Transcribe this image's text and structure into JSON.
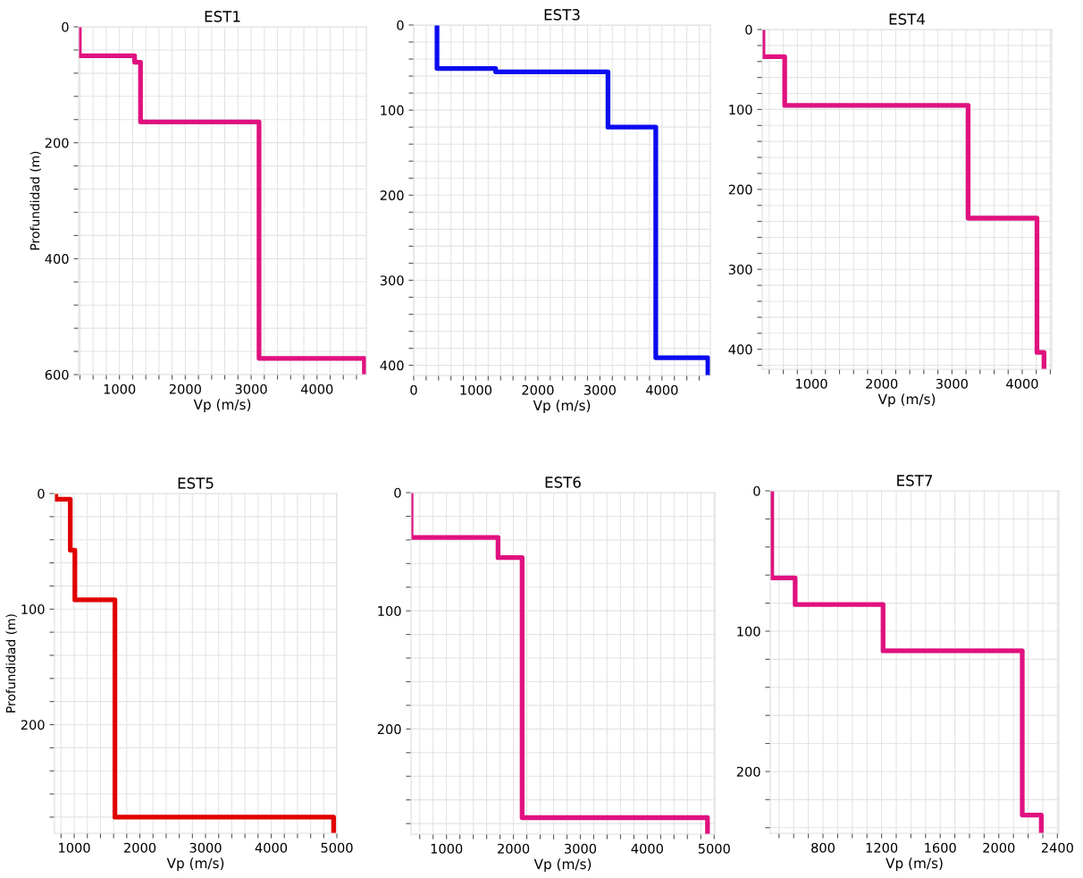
{
  "chart_data": [
    {
      "type": "line",
      "title": "EST1",
      "xlabel": "Vp (m/s)",
      "ylabel": "Profundidad (m)",
      "color": "#e0117f",
      "grid": true,
      "x": [
        390,
        390,
        1230,
        1230,
        1320,
        1320,
        3120,
        3120,
        4720,
        4720
      ],
      "values": [
        0,
        50,
        50,
        61,
        61,
        164,
        164,
        572,
        572,
        600
      ],
      "xlim": [
        380,
        4750
      ],
      "ylim": [
        600,
        0
      ],
      "xticks": [
        {
          "value": 400,
          "label": null
        },
        {
          "value": 600,
          "label": null
        },
        {
          "value": 800,
          "label": null
        },
        1000,
        {
          "value": 1200,
          "label": null
        },
        {
          "value": 1400,
          "label": null
        },
        {
          "value": 1600,
          "label": null
        },
        {
          "value": 1800,
          "label": null
        },
        2000,
        {
          "value": 2200,
          "label": null
        },
        {
          "value": 2400,
          "label": null
        },
        {
          "value": 2600,
          "label": null
        },
        {
          "value": 2800,
          "label": null
        },
        3000,
        {
          "value": 3200,
          "label": null
        },
        {
          "value": 3400,
          "label": null
        },
        {
          "value": 3600,
          "label": null
        },
        {
          "value": 3800,
          "label": null
        },
        4000,
        {
          "value": 4200,
          "label": null
        },
        {
          "value": 4400,
          "label": null
        },
        {
          "value": 4600,
          "label": null
        }
      ],
      "yticks": [
        0,
        {
          "value": 40,
          "label": null
        },
        {
          "value": 80,
          "label": null
        },
        {
          "value": 120,
          "label": null
        },
        {
          "value": 160,
          "label": null
        },
        200,
        {
          "value": 240,
          "label": null
        },
        {
          "value": 280,
          "label": null
        },
        {
          "value": 320,
          "label": null
        },
        {
          "value": 360,
          "label": null
        },
        400,
        {
          "value": 440,
          "label": null
        },
        {
          "value": 480,
          "label": null
        },
        {
          "value": 520,
          "label": null
        },
        {
          "value": 560,
          "label": null
        },
        600
      ]
    },
    {
      "type": "line",
      "title": "EST3",
      "xlabel": "Vp (m/s)",
      "color": "#0b0bf0",
      "grid": true,
      "x": [
        375,
        375,
        1320,
        1320,
        3130,
        3130,
        3900,
        3900,
        4740,
        4740
      ],
      "values": [
        0,
        51,
        51,
        55,
        55,
        120,
        120,
        391,
        391,
        412
      ],
      "xlim": [
        0,
        4780
      ],
      "ylim": [
        412,
        0
      ],
      "xticks": [
        0,
        {
          "value": 200,
          "label": null
        },
        {
          "value": 400,
          "label": null
        },
        {
          "value": 600,
          "label": null
        },
        {
          "value": 800,
          "label": null
        },
        1000,
        {
          "value": 1200,
          "label": null
        },
        {
          "value": 1400,
          "label": null
        },
        {
          "value": 1600,
          "label": null
        },
        {
          "value": 1800,
          "label": null
        },
        2000,
        {
          "value": 2200,
          "label": null
        },
        {
          "value": 2400,
          "label": null
        },
        {
          "value": 2600,
          "label": null
        },
        {
          "value": 2800,
          "label": null
        },
        3000,
        {
          "value": 3200,
          "label": null
        },
        {
          "value": 3400,
          "label": null
        },
        {
          "value": 3600,
          "label": null
        },
        {
          "value": 3800,
          "label": null
        },
        4000,
        {
          "value": 4200,
          "label": null
        },
        {
          "value": 4400,
          "label": null
        },
        {
          "value": 4600,
          "label": null
        }
      ],
      "yticks": [
        0,
        {
          "value": 20,
          "label": null
        },
        {
          "value": 40,
          "label": null
        },
        {
          "value": 60,
          "label": null
        },
        {
          "value": 80,
          "label": null
        },
        100,
        {
          "value": 120,
          "label": null
        },
        {
          "value": 140,
          "label": null
        },
        {
          "value": 160,
          "label": null
        },
        {
          "value": 180,
          "label": null
        },
        200,
        {
          "value": 220,
          "label": null
        },
        {
          "value": 240,
          "label": null
        },
        {
          "value": 260,
          "label": null
        },
        {
          "value": 280,
          "label": null
        },
        300,
        {
          "value": 320,
          "label": null
        },
        {
          "value": 340,
          "label": null
        },
        {
          "value": 360,
          "label": null
        },
        {
          "value": 380,
          "label": null
        },
        400
      ]
    },
    {
      "type": "line",
      "title": "EST4",
      "xlabel": "Vp (m/s)",
      "color": "#e0117f",
      "grid": true,
      "x": [
        310,
        310,
        620,
        620,
        3230,
        3230,
        4210,
        4210,
        4310,
        4310
      ],
      "values": [
        0,
        34,
        34,
        95,
        95,
        236,
        236,
        404,
        404,
        425
      ],
      "xlim": [
        300,
        4420
      ],
      "ylim": [
        425,
        0
      ],
      "xticks": [
        {
          "value": 400,
          "label": null
        },
        {
          "value": 600,
          "label": null
        },
        {
          "value": 800,
          "label": null
        },
        1000,
        {
          "value": 1200,
          "label": null
        },
        {
          "value": 1400,
          "label": null
        },
        {
          "value": 1600,
          "label": null
        },
        {
          "value": 1800,
          "label": null
        },
        2000,
        {
          "value": 2200,
          "label": null
        },
        {
          "value": 2400,
          "label": null
        },
        {
          "value": 2600,
          "label": null
        },
        {
          "value": 2800,
          "label": null
        },
        3000,
        {
          "value": 3200,
          "label": null
        },
        {
          "value": 3400,
          "label": null
        },
        {
          "value": 3600,
          "label": null
        },
        {
          "value": 3800,
          "label": null
        },
        4000,
        {
          "value": 4200,
          "label": null
        },
        {
          "value": 4400,
          "label": null
        }
      ],
      "yticks": [
        0,
        {
          "value": 20,
          "label": null
        },
        {
          "value": 40,
          "label": null
        },
        {
          "value": 60,
          "label": null
        },
        {
          "value": 80,
          "label": null
        },
        100,
        {
          "value": 120,
          "label": null
        },
        {
          "value": 140,
          "label": null
        },
        {
          "value": 160,
          "label": null
        },
        {
          "value": 180,
          "label": null
        },
        200,
        {
          "value": 220,
          "label": null
        },
        {
          "value": 240,
          "label": null
        },
        {
          "value": 260,
          "label": null
        },
        {
          "value": 280,
          "label": null
        },
        300,
        {
          "value": 320,
          "label": null
        },
        {
          "value": 340,
          "label": null
        },
        {
          "value": 360,
          "label": null
        },
        {
          "value": 380,
          "label": null
        },
        400,
        {
          "value": 420,
          "label": null
        }
      ]
    },
    {
      "type": "line",
      "title": "EST5",
      "xlabel": "Vp (m/s)",
      "ylabel": "Profundidad (m)",
      "color": "#e00000",
      "grid": true,
      "x": [
        720,
        720,
        940,
        940,
        1010,
        1010,
        1620,
        1620,
        4950,
        4950
      ],
      "values": [
        0,
        5,
        5,
        49,
        49,
        92,
        92,
        280,
        280,
        294
      ],
      "xlim": [
        700,
        5000
      ],
      "ylim": [
        294,
        0
      ],
      "xticks": [
        {
          "value": 800,
          "label": null
        },
        1000,
        {
          "value": 1200,
          "label": null
        },
        {
          "value": 1400,
          "label": null
        },
        {
          "value": 1600,
          "label": null
        },
        {
          "value": 1800,
          "label": null
        },
        2000,
        {
          "value": 2200,
          "label": null
        },
        {
          "value": 2400,
          "label": null
        },
        {
          "value": 2600,
          "label": null
        },
        {
          "value": 2800,
          "label": null
        },
        3000,
        {
          "value": 3200,
          "label": null
        },
        {
          "value": 3400,
          "label": null
        },
        {
          "value": 3600,
          "label": null
        },
        {
          "value": 3800,
          "label": null
        },
        4000,
        {
          "value": 4200,
          "label": null
        },
        {
          "value": 4400,
          "label": null
        },
        {
          "value": 4600,
          "label": null
        },
        {
          "value": 4800,
          "label": null
        },
        5000
      ],
      "yticks": [
        0,
        {
          "value": 20,
          "label": null
        },
        {
          "value": 40,
          "label": null
        },
        {
          "value": 60,
          "label": null
        },
        {
          "value": 80,
          "label": null
        },
        100,
        {
          "value": 120,
          "label": null
        },
        {
          "value": 140,
          "label": null
        },
        {
          "value": 160,
          "label": null
        },
        {
          "value": 180,
          "label": null
        },
        200,
        {
          "value": 220,
          "label": null
        },
        {
          "value": 240,
          "label": null
        },
        {
          "value": 260,
          "label": null
        },
        {
          "value": 280,
          "label": null
        }
      ]
    },
    {
      "type": "line",
      "title": "EST6",
      "xlabel": "Vp (m/s)",
      "color": "#e0117f",
      "grid": true,
      "x": [
        470,
        470,
        1770,
        1770,
        2130,
        2130,
        4900,
        4900
      ],
      "values": [
        0,
        38,
        38,
        55,
        55,
        275,
        275,
        289
      ],
      "xlim": [
        470,
        5010
      ],
      "ylim": [
        289,
        0
      ],
      "xticks": [
        {
          "value": 600,
          "label": null
        },
        {
          "value": 800,
          "label": null
        },
        1000,
        {
          "value": 1200,
          "label": null
        },
        {
          "value": 1400,
          "label": null
        },
        {
          "value": 1600,
          "label": null
        },
        {
          "value": 1800,
          "label": null
        },
        2000,
        {
          "value": 2200,
          "label": null
        },
        {
          "value": 2400,
          "label": null
        },
        {
          "value": 2600,
          "label": null
        },
        {
          "value": 2800,
          "label": null
        },
        3000,
        {
          "value": 3200,
          "label": null
        },
        {
          "value": 3400,
          "label": null
        },
        {
          "value": 3600,
          "label": null
        },
        {
          "value": 3800,
          "label": null
        },
        4000,
        {
          "value": 4200,
          "label": null
        },
        {
          "value": 4400,
          "label": null
        },
        {
          "value": 4600,
          "label": null
        },
        {
          "value": 4800,
          "label": null
        },
        5000
      ],
      "yticks": [
        0,
        {
          "value": 20,
          "label": null
        },
        {
          "value": 40,
          "label": null
        },
        {
          "value": 60,
          "label": null
        },
        {
          "value": 80,
          "label": null
        },
        100,
        {
          "value": 120,
          "label": null
        },
        {
          "value": 140,
          "label": null
        },
        {
          "value": 160,
          "label": null
        },
        {
          "value": 180,
          "label": null
        },
        200,
        {
          "value": 220,
          "label": null
        },
        {
          "value": 240,
          "label": null
        },
        {
          "value": 260,
          "label": null
        },
        {
          "value": 280,
          "label": null
        }
      ]
    },
    {
      "type": "line",
      "title": "EST7",
      "xlabel": "Vp (m/s)",
      "color": "#e0117f",
      "grid": true,
      "x": [
        450,
        450,
        610,
        610,
        1210,
        1210,
        2160,
        2160,
        2290,
        2290
      ],
      "values": [
        0,
        62,
        62,
        81,
        81,
        114,
        114,
        231,
        231,
        244
      ],
      "xlim": [
        440,
        2410
      ],
      "ylim": [
        244,
        0
      ],
      "xticks": [
        {
          "value": 500,
          "label": null
        },
        {
          "value": 600,
          "label": null
        },
        {
          "value": 700,
          "label": null
        },
        800,
        {
          "value": 900,
          "label": null
        },
        {
          "value": 1000,
          "label": null
        },
        {
          "value": 1100,
          "label": null
        },
        1200,
        {
          "value": 1300,
          "label": null
        },
        {
          "value": 1400,
          "label": null
        },
        {
          "value": 1500,
          "label": null
        },
        1600,
        {
          "value": 1700,
          "label": null
        },
        {
          "value": 1800,
          "label": null
        },
        {
          "value": 1900,
          "label": null
        },
        2000,
        {
          "value": 2100,
          "label": null
        },
        {
          "value": 2200,
          "label": null
        },
        {
          "value": 2300,
          "label": null
        },
        2400
      ],
      "yticks": [
        0,
        {
          "value": 20,
          "label": null
        },
        {
          "value": 40,
          "label": null
        },
        {
          "value": 60,
          "label": null
        },
        {
          "value": 80,
          "label": null
        },
        100,
        {
          "value": 120,
          "label": null
        },
        {
          "value": 140,
          "label": null
        },
        {
          "value": 160,
          "label": null
        },
        {
          "value": 180,
          "label": null
        },
        200,
        {
          "value": 220,
          "label": null
        },
        {
          "value": 240,
          "label": null
        }
      ]
    }
  ]
}
